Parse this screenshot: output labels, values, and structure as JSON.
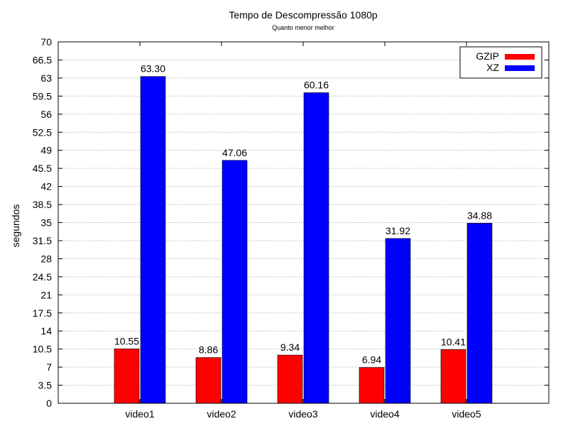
{
  "chart_data": {
    "type": "bar",
    "title": "Tempo de Descompressão 1080p",
    "subtitle": "Quanto menor melhor",
    "xlabel": "",
    "ylabel": "segundos",
    "ylim": [
      0,
      70
    ],
    "yticks": [
      "0",
      "3.5",
      "7",
      "10.5",
      "14",
      "17.5",
      "21",
      "24.5",
      "28",
      "31.5",
      "35",
      "38.5",
      "42",
      "45.5",
      "49",
      "52.5",
      "56",
      "59.5",
      "63",
      "66.5",
      "70"
    ],
    "grid": true,
    "legend_position": "top-right",
    "categories": [
      "video1",
      "video2",
      "video3",
      "video4",
      "video5"
    ],
    "series": [
      {
        "name": "GZIP",
        "color": "#ff0000",
        "values": [
          10.55,
          8.86,
          9.34,
          6.94,
          10.41
        ],
        "labels": [
          "10.55",
          "8.86",
          "9.34",
          "6.94",
          "10.41"
        ]
      },
      {
        "name": "XZ",
        "color": "#0000ff",
        "values": [
          63.3,
          47.06,
          60.16,
          31.92,
          34.88
        ],
        "labels": [
          "63.30",
          "47.06",
          "60.16",
          "31.92",
          "34.88"
        ]
      }
    ]
  }
}
